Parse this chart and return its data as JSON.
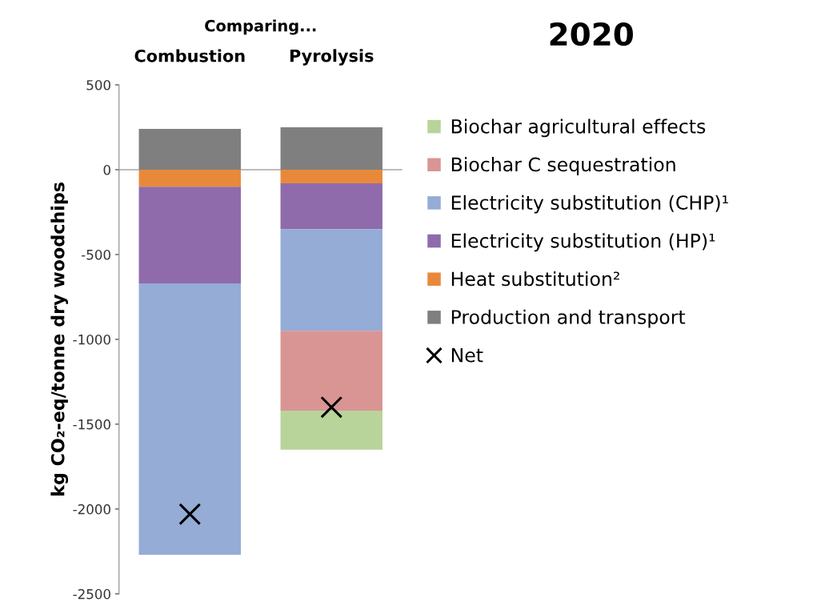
{
  "chart_data": {
    "type": "bar",
    "title": "2020",
    "ylabel": "kg CO₂-eq/tonne dry woodchips",
    "annotations": [
      "Comparing..."
    ],
    "categories": [
      "Combustion",
      "Pyrolysis"
    ],
    "stacked": true,
    "series": [
      {
        "name": "Production and transport",
        "color": "#7f7f7f",
        "values": [
          240,
          250
        ]
      },
      {
        "name": "Heat substitution²",
        "color": "#e8893a",
        "values": [
          -100,
          -80
        ]
      },
      {
        "name": "Electricity substitution (HP)¹",
        "color": "#8f6bab",
        "values": [
          -570,
          -270
        ]
      },
      {
        "name": "Electricity substitution (CHP)¹",
        "color": "#94acd6",
        "values": [
          -1600,
          -600
        ]
      },
      {
        "name": "Biochar C sequestration",
        "color": "#d99594",
        "values": [
          0,
          -470
        ]
      },
      {
        "name": "Biochar agricultural effects",
        "color": "#b8d49a",
        "values": [
          0,
          -230
        ]
      },
      {
        "name": "Net",
        "type": "scatter",
        "marker": "cross",
        "color": "#000000",
        "x": [
          "Combustion",
          "Pyrolysis"
        ],
        "values": [
          -2030,
          -1400
        ]
      }
    ],
    "ylim": [
      -2500,
      500
    ],
    "yticks": [
      -2500,
      -2000,
      -1500,
      -1000,
      -500,
      0,
      500
    ],
    "ref_lines": [
      {
        "axis": "y",
        "value": 0,
        "color": "#a6a6a6"
      }
    ],
    "grid": false,
    "legend": "right"
  }
}
